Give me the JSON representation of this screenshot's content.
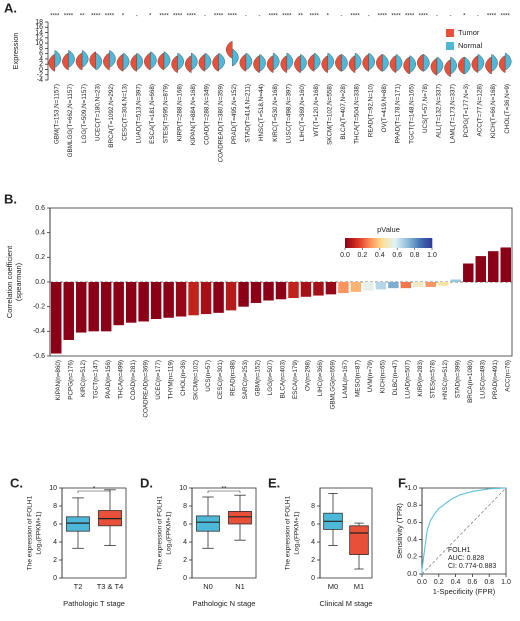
{
  "chart_data": [
    {
      "type": "violin",
      "label": "A.",
      "ylabel": "Expression",
      "categories": [
        "GBM(T=153,N=1157)",
        "GBMLGG(T=662,N=1157)",
        "LGG(T=509,N=1157)",
        "UCEC(T=180,N=23)",
        "BRCA(T=1092,N=292)",
        "CESC(T=304,N=13)",
        "LUAD(T=513,N=397)",
        "ESCA(T=181,N=668)",
        "STES(T=595,N=879)",
        "KIRP(T=288,N=168)",
        "KIPAN(T=884,N=168)",
        "COAD(T=288,N=349)",
        "COADREAD(T=380,N=359)",
        "PRAD(T=495,N=152)",
        "STAD(T=414,N=211)",
        "HNSC(T=518,N=44)",
        "KIRC(T=530,N=168)",
        "LUSC(T=498,N=397)",
        "LIHC(T=369,N=160)",
        "WT(T=120,N=168)",
        "SKCM(T=102,N=558)",
        "BLCA(T=407,N=28)",
        "THCA(T=504,N=338)",
        "READ(T=92,N=10)",
        "OV(T=419,N=88)",
        "PAAD(T=178,N=171)",
        "TGCT(T=148,N=165)",
        "UCS(T=57,N=78)",
        "ALL(T=132,N=337)",
        "LAML(T=173,N=337)",
        "PCPG(T=177,N=3)",
        "ACC(T=77,N=128)",
        "KICH(T=66,N=168)",
        "CHOL(T=36,N=9)"
      ],
      "series": [
        {
          "name": "Tumor",
          "color": "#e8503a",
          "values": [
            2.5,
            3,
            3,
            3.5,
            3,
            2.5,
            2.5,
            3,
            3,
            2,
            2,
            2.5,
            2.5,
            7.5,
            2.5,
            2,
            2,
            2,
            2,
            2.5,
            2,
            2.5,
            2,
            2.5,
            2.5,
            2,
            1.5,
            2.5,
            1,
            0.5,
            1.5,
            2,
            1.5,
            2
          ]
        },
        {
          "name": "Normal",
          "color": "#4db8d8",
          "values": [
            4,
            4,
            4,
            3,
            4,
            3,
            3,
            3.5,
            3.5,
            3,
            3,
            3,
            3,
            4.5,
            3,
            2.5,
            3,
            3,
            2.5,
            3,
            3,
            2.5,
            3,
            3,
            2.5,
            2.5,
            2,
            2.5,
            1.5,
            1.5,
            1.5,
            2.5,
            2.5,
            3
          ]
        }
      ],
      "significance": [
        "****",
        "****",
        "**",
        "****",
        "****",
        "*",
        "-",
        "*",
        "****",
        "****",
        "****",
        "-",
        "****",
        "****",
        "-",
        "-",
        "****",
        "****",
        "**",
        "****",
        "*",
        "-",
        "****",
        "-",
        "****",
        "****",
        "****",
        "****",
        "-",
        "-",
        "*",
        "-",
        "****",
        "****"
      ],
      "ylim": [
        -4,
        18
      ],
      "yticks": [
        -4,
        -2,
        0,
        2,
        4,
        6,
        8,
        10,
        12,
        14,
        16,
        18
      ],
      "legend": "upper right"
    },
    {
      "type": "bar",
      "label": "B.",
      "ylabel": [
        "Correlation coefficient",
        "(spearman)"
      ],
      "categories": [
        "KIPAN(n=860)",
        "PCPG(n=176)",
        "KIRC(n=512)",
        "TGCT(n=147)",
        "PAAD(n=156)",
        "THCA(n=499)",
        "COAD(n=281)",
        "COADREAD(n=369)",
        "UCEC(n=177)",
        "THYM(n=119)",
        "CHOL(n=36)",
        "SKCM(n=102)",
        "UCS(n=57)",
        "CESC(n=301)",
        "READ(n=88)",
        "SARC(n=253)",
        "GBM(n=152)",
        "LGG(n=507)",
        "BLCA(n=403)",
        "ESCA(n=179)",
        "OV(n=298)",
        "LIHC(n=366)",
        "GBMLGG(n=659)",
        "LAML(n=167)",
        "MESO(n=87)",
        "UVM(n=79)",
        "KICH(n=65)",
        "DLBC(n=47)",
        "LUAD(n=507)",
        "KIRP(n=283)",
        "STES(n=578)",
        "HNSC(n=512)",
        "STAD(n=399)",
        "BRCA(n=1080)",
        "LUSC(n=493)",
        "PRAD(n=491)",
        "ACC(n=76)"
      ],
      "values": [
        -0.58,
        -0.47,
        -0.41,
        -0.4,
        -0.4,
        -0.35,
        -0.33,
        -0.32,
        -0.3,
        -0.29,
        -0.28,
        -0.27,
        -0.26,
        -0.25,
        -0.23,
        -0.2,
        -0.17,
        -0.15,
        -0.14,
        -0.13,
        -0.12,
        -0.11,
        -0.1,
        -0.09,
        -0.08,
        -0.07,
        -0.06,
        -0.05,
        -0.05,
        -0.04,
        -0.04,
        -0.03,
        0.02,
        0.15,
        0.21,
        0.25,
        0.28
      ],
      "pvalues": [
        0,
        0,
        0,
        0,
        0,
        0,
        0,
        0,
        0,
        0,
        0.02,
        0.1,
        0.05,
        0,
        0.08,
        0,
        0,
        0,
        0,
        0.1,
        0.05,
        0.05,
        0.02,
        0.3,
        0.35,
        0.55,
        0.65,
        0.75,
        0.25,
        0.5,
        0.3,
        0.45,
        0.7,
        0,
        0,
        0,
        0
      ],
      "ylim": [
        -0.6,
        0.6
      ],
      "yticks": [
        -0.6,
        -0.4,
        -0.2,
        {
          "value": 0,
          "label": "0.0"
        },
        0.2,
        0.4,
        0.6
      ],
      "colorbar": {
        "title": "pValue",
        "colors": [
          "#8b0016",
          "#d7301f",
          "#fc8d59",
          "#fee090",
          "#e0f3f8",
          "#91bfdb",
          "#4575b4",
          "#313695"
        ],
        "lim": [
          0,
          1
        ],
        "ticks": [
          {
            "value": 0,
            "label": "0.0"
          },
          0.2,
          0.4,
          0.6,
          0.8,
          {
            "value": 1,
            "label": "1.0"
          }
        ]
      }
    },
    {
      "type": "box",
      "label": "C.",
      "ylabel": [
        "The expression of FOLH1",
        "Log₂(FPKM+1)"
      ],
      "xlabel": "Pathologic T stage",
      "categories": [
        "T2",
        "T3 & T4"
      ],
      "colors": [
        "#4db8d8",
        "#e8503a"
      ],
      "boxes": [
        {
          "whislo": 3.3,
          "q1": 5.2,
          "med": 6.1,
          "q3": 6.8,
          "whishi": 8.9
        },
        {
          "whislo": 3.6,
          "q1": 5.8,
          "med": 6.6,
          "q3": 7.5,
          "whishi": 9.8
        }
      ],
      "significance": "*",
      "ylim": [
        0,
        10
      ],
      "yticks": [
        0,
        2,
        4,
        6,
        8,
        10
      ]
    },
    {
      "type": "box",
      "label": "D.",
      "ylabel": [
        "The expression of FOLH1",
        "Log₂(FPKM+1)"
      ],
      "xlabel": "Pathologic N stage",
      "categories": [
        "N0",
        "N1"
      ],
      "colors": [
        "#4db8d8",
        "#e8503a"
      ],
      "boxes": [
        {
          "whislo": 3.3,
          "q1": 5.2,
          "med": 6.2,
          "q3": 6.9,
          "whishi": 9.0
        },
        {
          "whislo": 4.2,
          "q1": 6.0,
          "med": 6.8,
          "q3": 7.4,
          "whishi": 9.2
        }
      ],
      "significance": "**",
      "ylim": [
        0,
        10
      ],
      "yticks": [
        0,
        2,
        4,
        6,
        8,
        10
      ]
    },
    {
      "type": "box",
      "label": "E.",
      "ylabel": [
        "The expression of FOLH1",
        "Log₂(FPKM+1)"
      ],
      "xlabel": "Clinical M stage",
      "categories": [
        "M0",
        "M1"
      ],
      "colors": [
        "#4db8d8",
        "#e8503a"
      ],
      "boxes": [
        {
          "whislo": 3.6,
          "q1": 5.4,
          "med": 6.3,
          "q3": 7.2,
          "whishi": 9.4
        },
        {
          "whislo": 1.0,
          "q1": 2.6,
          "med": 5.0,
          "q3": 5.8,
          "whishi": 6.1
        }
      ],
      "ylim": [
        0,
        10
      ],
      "yticks": [
        0,
        2,
        4,
        6,
        8
      ]
    },
    {
      "type": "roc",
      "label": "F.",
      "xlabel": "1-Specificity (FPR)",
      "ylabel": "Sensitivity (TPR)",
      "color": "#5bc0de",
      "x": [
        0,
        0,
        0.02,
        0.04,
        0.06,
        0.1,
        0.15,
        0.2,
        0.28,
        0.35,
        0.45,
        0.6,
        0.8,
        1
      ],
      "y": [
        0,
        0.05,
        0.2,
        0.35,
        0.5,
        0.62,
        0.7,
        0.76,
        0.82,
        0.87,
        0.92,
        0.96,
        0.99,
        1
      ],
      "xlim": [
        0,
        1
      ],
      "ylim": [
        0,
        1
      ],
      "xticks": [
        {
          "value": 0,
          "label": "0.0"
        },
        0.2,
        0.4,
        0.6,
        0.8,
        {
          "value": 1,
          "label": "1.0"
        }
      ],
      "yticks": [
        {
          "value": 0,
          "label": "0.0"
        },
        0.2,
        0.4,
        0.6,
        0.8,
        {
          "value": 1,
          "label": "1.0"
        }
      ],
      "annotations": [
        "FOLH1",
        "AUC: 0.828",
        "CI: 0.774-0.883"
      ]
    }
  ]
}
